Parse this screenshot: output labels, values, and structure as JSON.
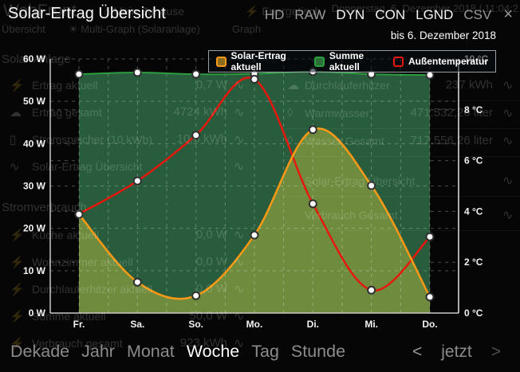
{
  "window": {
    "close": "×"
  },
  "toolbar": {
    "buttons": [
      {
        "label": "HD",
        "active": false
      },
      {
        "label": "RAW",
        "active": false
      },
      {
        "label": "DYN",
        "active": true
      },
      {
        "label": "CON",
        "active": true
      },
      {
        "label": "LGND",
        "active": true
      },
      {
        "label": "CSV",
        "active": false
      }
    ]
  },
  "chart_data": {
    "type": "line",
    "title": "Solar-Ertrag Übersicht",
    "period_label": "bis 6. Dezember 2018",
    "legend_position": "top",
    "grid": "dashed",
    "categories": [
      "Fr.",
      "Sa.",
      "So.",
      "Mo.",
      "Di.",
      "Mi.",
      "Do."
    ],
    "series": [
      {
        "name": "Solar-Ertrag aktuell",
        "axis": "left",
        "unit": "W",
        "color": "#ff9915",
        "area_fill": "#6f8c3e",
        "swatch_fill": "#8a6d22",
        "values": [
          23.3,
          7.3,
          4.1,
          18.4,
          43.3,
          30.1,
          3.8
        ]
      },
      {
        "name": "Summe aktuell",
        "axis": "left",
        "unit": "W",
        "color": "#2d9e3f",
        "area_fill": "#285c3c",
        "swatch_fill": "#2c6e38",
        "values": [
          56.4,
          56.8,
          56.4,
          56.5,
          57.0,
          56.4,
          56.2
        ]
      },
      {
        "name": "Außentemperatur",
        "axis": "right",
        "unit": "°C",
        "color": "#e8170d",
        "area_fill": null,
        "swatch_fill": "transparent",
        "values": [
          3.9,
          5.2,
          7.0,
          9.2,
          4.3,
          0.9,
          3.0
        ]
      }
    ],
    "left_axis": {
      "unit": "W",
      "min": 0,
      "max": 60,
      "ticks": [
        {
          "v": 60,
          "label": "60 W"
        },
        {
          "v": 50,
          "label": "50 W"
        },
        {
          "v": 40,
          "label": "40 W"
        },
        {
          "v": 30,
          "label": "30 W"
        },
        {
          "v": 20,
          "label": "20 W"
        },
        {
          "v": 10,
          "label": "10 W"
        },
        {
          "v": 0,
          "label": "0 W"
        }
      ],
      "grid": [
        10,
        20,
        30,
        40,
        50,
        60
      ]
    },
    "right_axis": {
      "unit": "°C",
      "min": 0,
      "max": 10,
      "ticks": [
        {
          "v": 10,
          "label": "10 °C"
        },
        {
          "v": 8,
          "label": "8 °C"
        },
        {
          "v": 6,
          "label": "6 °C"
        },
        {
          "v": 4,
          "label": "4 °C"
        },
        {
          "v": 2,
          "label": "2 °C"
        },
        {
          "v": 0,
          "label": "0 °C"
        }
      ],
      "grid": [
        2,
        4,
        6,
        8
      ]
    }
  },
  "time_controls": {
    "ranges": [
      {
        "label": "Dekade",
        "active": false
      },
      {
        "label": "Jahr",
        "active": false
      },
      {
        "label": "Monat",
        "active": false
      },
      {
        "label": "Woche",
        "active": true
      },
      {
        "label": "Tag",
        "active": false
      },
      {
        "label": "Stunde",
        "active": false
      }
    ],
    "prev": "<",
    "now": "jetzt",
    "next": ">"
  },
  "background": {
    "topbar": {
      "logo": "WebFront",
      "datetime": "Donnerstag, 6. Dezember 2018 | 11:04:2",
      "tabs": [
        {
          "icon": "house",
          "label": "Mein Zuhause"
        },
        {
          "icon": "lightning",
          "label": "Energetisch"
        }
      ]
    },
    "nav_tabs": [
      {
        "icon": "",
        "label": "Übersicht",
        "x": 2
      },
      {
        "icon": "sun",
        "label": "Multi-Graph (Solaranlage)",
        "x": 86
      },
      {
        "icon": "",
        "label": "Graph",
        "x": 291
      }
    ],
    "left_panel": {
      "sections": [
        {
          "header": "Solar-Anlage",
          "items": [
            {
              "icon": "lightning",
              "label": "Ertrag aktuell",
              "value": "0,7 W"
            },
            {
              "icon": "storm",
              "label": "Ertrag gesamt",
              "value": "4724 kWh"
            },
            {
              "icon": "battery",
              "label": "Stromspeicher (10 kWh)",
              "value": "10,0 kWh"
            },
            {
              "icon": "wave",
              "label": "Solar-Ertrag Übersicht",
              "value": ""
            }
          ]
        },
        {
          "header": "Stromverbrauch",
          "items": [
            {
              "icon": "lightning",
              "label": "Küche aktuell",
              "value": "0,0 W"
            },
            {
              "icon": "lightning",
              "label": "Wohnzimmer aktuell",
              "value": "0,0 W"
            },
            {
              "icon": "lightning",
              "label": "Durchlauferhitzer aktuell",
              "value": "0,0 W"
            },
            {
              "icon": "lightning",
              "label": "Summe aktuell",
              "value": "50,0 W"
            },
            {
              "icon": "lightning",
              "label": "Verbrauch gesamt",
              "value": "923 kWh"
            }
          ]
        }
      ]
    },
    "right_panel": {
      "items": [
        {
          "icon": "storm",
          "label": "Durchlauferhitzer",
          "value": "237 kWh"
        },
        {
          "icon": "drop",
          "label": "Warmwasser",
          "value": "471.532,26 liter"
        },
        {
          "icon": "drop",
          "label": "Wasser Gesamt",
          "value": "717.556,26 liter"
        },
        {
          "icon": "wave",
          "label": "Solar-Ertrag Übersicht",
          "value": ""
        },
        {
          "icon": "wave",
          "label": "Verbrauch Gesamt",
          "value": ""
        }
      ]
    }
  }
}
